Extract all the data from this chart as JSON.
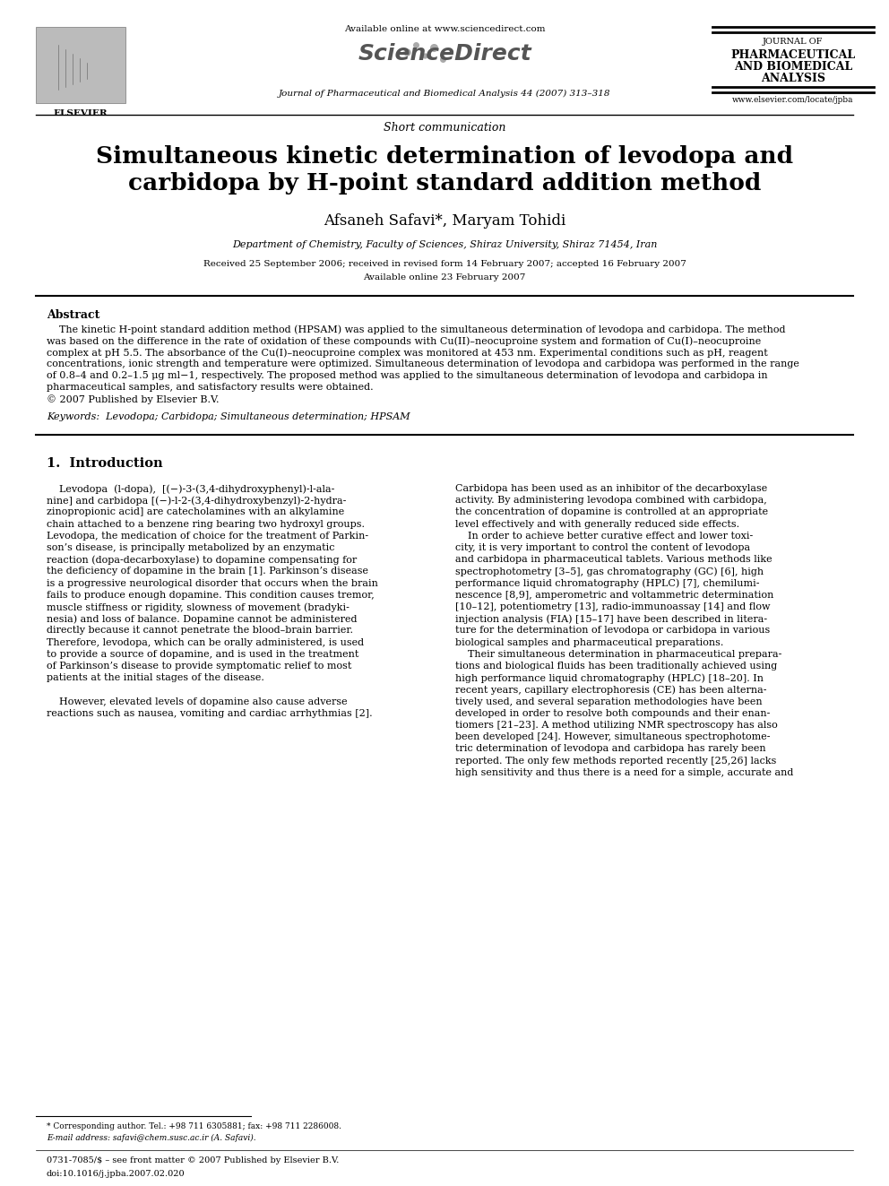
{
  "bg_color": "#ffffff",
  "header": {
    "available_online": "Available online at www.sciencedirect.com",
    "journal_top": "Journal of Pharmaceutical and Biomedical Analysis 44 (2007) 313–318",
    "journal_right_lines": [
      "JOURNAL OF",
      "PHARMACEUTICAL",
      "AND BIOMEDICAL",
      "ANALYSIS"
    ],
    "website": "www.elsevier.com/locate/jpba",
    "elsevier_label": "ELSEVIER"
  },
  "article_type": "Short communication",
  "title_line1": "Simultaneous kinetic determination of levodopa and",
  "title_line2": "carbidopa by H-point standard addition method",
  "authors": "Afsaneh Safavi*, Maryam Tohidi",
  "affiliation": "Department of Chemistry, Faculty of Sciences, Shiraz University, Shiraz 71454, Iran",
  "date_line1": "Received 25 September 2006; received in revised form 14 February 2007; accepted 16 February 2007",
  "date_line2": "Available online 23 February 2007",
  "abstract_title": "Abstract",
  "abstract_line1": "    The kinetic H-point standard addition method (HPSAM) was applied to the simultaneous determination of levodopa and carbidopa. The method",
  "abstract_line2": "was based on the difference in the rate of oxidation of these compounds with Cu(II)–neocuproine system and formation of Cu(I)–neocuproine",
  "abstract_line3": "complex at pH 5.5. The absorbance of the Cu(I)–neocuproine complex was monitored at 453 nm. Experimental conditions such as pH, reagent",
  "abstract_line4": "concentrations, ionic strength and temperature were optimized. Simultaneous determination of levodopa and carbidopa was performed in the range",
  "abstract_line5": "of 0.8–4 and 0.2–1.5 μg ml−1, respectively. The proposed method was applied to the simultaneous determination of levodopa and carbidopa in",
  "abstract_line6": "pharmaceutical samples, and satisfactory results were obtained.",
  "abstract_line7": "© 2007 Published by Elsevier B.V.",
  "keywords": "Keywords:  Levodopa; Carbidopa; Simultaneous determination; HPSAM",
  "section1_title": "1.  Introduction",
  "col1_lines": [
    "    Levodopa  (l-dopa),  [(−)-3-(3,4-dihydroxyphenyl)-l-ala-",
    "nine] and carbidopa [(−)-l-2-(3,4-dihydroxybenzyl)-2-hydra-",
    "zinopropionic acid] are catecholamines with an alkylamine",
    "chain attached to a benzene ring bearing two hydroxyl groups.",
    "Levodopa, the medication of choice for the treatment of Parkin-",
    "son’s disease, is principally metabolized by an enzymatic",
    "reaction (dopa-decarboxylase) to dopamine compensating for",
    "the deficiency of dopamine in the brain [1]. Parkinson’s disease",
    "is a progressive neurological disorder that occurs when the brain",
    "fails to produce enough dopamine. This condition causes tremor,",
    "muscle stiffness or rigidity, slowness of movement (bradyki-",
    "nesia) and loss of balance. Dopamine cannot be administered",
    "directly because it cannot penetrate the blood–brain barrier.",
    "Therefore, levodopa, which can be orally administered, is used",
    "to provide a source of dopamine, and is used in the treatment",
    "of Parkinson’s disease to provide symptomatic relief to most",
    "patients at the initial stages of the disease.",
    "",
    "    However, elevated levels of dopamine also cause adverse",
    "reactions such as nausea, vomiting and cardiac arrhythmias [2]."
  ],
  "col2_lines": [
    "Carbidopa has been used as an inhibitor of the decarboxylase",
    "activity. By administering levodopa combined with carbidopa,",
    "the concentration of dopamine is controlled at an appropriate",
    "level effectively and with generally reduced side effects.",
    "    In order to achieve better curative effect and lower toxi-",
    "city, it is very important to control the content of levodopa",
    "and carbidopa in pharmaceutical tablets. Various methods like",
    "spectrophotometry [3–5], gas chromatography (GC) [6], high",
    "performance liquid chromatography (HPLC) [7], chemilumi-",
    "nescence [8,9], amperometric and voltammetric determination",
    "[10–12], potentiometry [13], radio-immunoassay [14] and flow",
    "injection analysis (FIA) [15–17] have been described in litera-",
    "ture for the determination of levodopa or carbidopa in various",
    "biological samples and pharmaceutical preparations.",
    "    Their simultaneous determination in pharmaceutical prepara-",
    "tions and biological fluids has been traditionally achieved using",
    "high performance liquid chromatography (HPLC) [18–20]. In",
    "recent years, capillary electrophoresis (CE) has been alterna-",
    "tively used, and several separation methodologies have been",
    "developed in order to resolve both compounds and their enan-",
    "tiomers [21–23]. A method utilizing NMR spectroscopy has also",
    "been developed [24]. However, simultaneous spectrophotome-",
    "tric determination of levodopa and carbidopa has rarely been",
    "reported. The only few methods reported recently [25,26] lacks",
    "high sensitivity and thus there is a need for a simple, accurate and"
  ],
  "footer_star": "* Corresponding author. Tel.: +98 711 6305881; fax: +98 711 2286008.",
  "footer_email": "E-mail address: safavi@chem.susc.ac.ir (A. Safavi).",
  "footer_issn": "0731-7085/$ – see front matter © 2007 Published by Elsevier B.V.",
  "footer_doi": "doi:10.1016/j.jpba.2007.02.020",
  "sciencedirect_text": "ScienceDirect"
}
